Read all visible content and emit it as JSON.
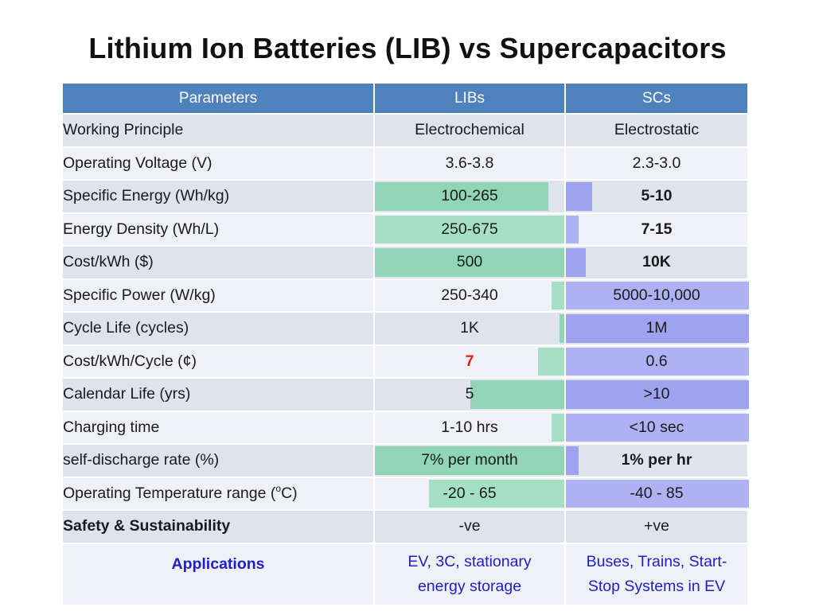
{
  "title": "Lithium Ion Batteries (LIB) vs Supercapacitors",
  "table": {
    "headers": [
      "Parameters",
      "LIBs",
      "SCs"
    ],
    "rows": [
      {
        "param": "Working Principle",
        "lib": "Electrochemical",
        "sc": "Electrostatic"
      },
      {
        "param": "Operating Voltage (V)",
        "lib": "3.6-3.8",
        "sc": "2.3-3.0"
      },
      {
        "param": "Specific Energy (Wh/kg)",
        "lib": "100-265",
        "sc": "5-10"
      },
      {
        "param": "Energy Density (Wh/L)",
        "lib": "250-675",
        "sc": "7-15"
      },
      {
        "param": "Cost/kWh ($)",
        "lib": "500",
        "sc": "10K"
      },
      {
        "param": "Specific Power (W/kg)",
        "lib": "250-340",
        "sc": "5000-10,000"
      },
      {
        "param": "Cycle Life (cycles)",
        "lib": "1K",
        "sc": "1M"
      },
      {
        "param": "Cost/kWh/Cycle (¢)",
        "lib": "7",
        "sc": "0.6"
      },
      {
        "param": "Calendar Life (yrs)",
        "lib": "5",
        "sc": ">10"
      },
      {
        "param": "Charging time",
        "lib": "1-10 hrs",
        "sc": "<10 sec"
      },
      {
        "param": "self-discharge rate (%)",
        "lib": "7% per month",
        "sc": "1% per hr"
      },
      {
        "param_pre": "Operating Temperature range (",
        "param_sup": "o",
        "param_post": "C)",
        "lib": "-20 - 65",
        "sc": "-40 - 85"
      },
      {
        "param": "Safety & Sustainability",
        "lib": "-ve",
        "sc": "+ve"
      },
      {
        "param": "Applications",
        "lib_line1": "EV, 3C, stationary",
        "lib_line2": "energy storage",
        "sc_line1": "Buses, Trains, Start-",
        "sc_line2": "Stop Systems in EV"
      }
    ]
  },
  "colors": {
    "header_bg": "#4f81bd",
    "lib_bar": "#8fd5b6",
    "sc_bar": "#9ea2ef",
    "highlight_red": "#e21b1b",
    "applications_blue": "#1e1ecc"
  }
}
